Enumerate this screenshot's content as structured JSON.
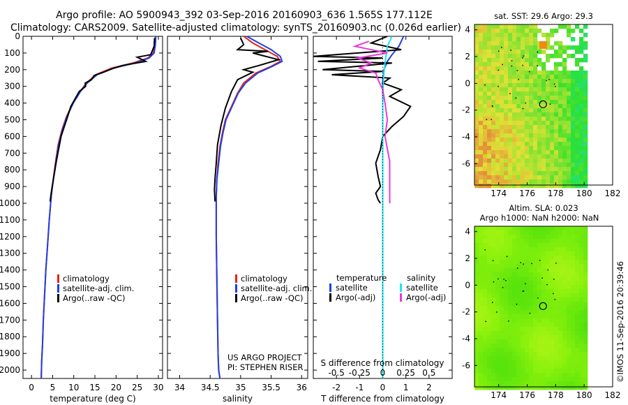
{
  "header": {
    "line1": "Argo profile: AO 5900943_392 03-Sep-2016 20160903_636 1.565S 177.112E",
    "line2": "Climatology: CARS2009. Satellite-adjusted climatology: synTS_20160903.nc (0.026d earlier)"
  },
  "side_credit": "©IMOS 11-Sep-2016 20:39:46",
  "colors": {
    "climatology": "#e8211d",
    "satellite_clim": "#1f3fe0",
    "argo": "#000000",
    "salinity_satellite": "#1ee4f0",
    "salinity_argo": "#e83ad6"
  },
  "chart_data": [
    {
      "type": "line",
      "panel": "temperature",
      "xlabel": "temperature (deg C)",
      "xlim": [
        -2,
        31
      ],
      "ylim": [
        2050,
        0
      ],
      "xticks": [
        "0",
        "5",
        "10",
        "15",
        "20",
        "25",
        "30"
      ],
      "xtick_values": [
        0,
        5,
        10,
        15,
        20,
        25,
        30
      ],
      "yticks": [
        "0",
        "100",
        "200",
        "300",
        "400",
        "500",
        "600",
        "700",
        "800",
        "900",
        "1000",
        "1100",
        "1200",
        "1300",
        "1400",
        "1500",
        "1600",
        "1700",
        "1800",
        "1900",
        "2000"
      ],
      "ytick_values": [
        0,
        100,
        200,
        300,
        400,
        500,
        600,
        700,
        800,
        900,
        1000,
        1100,
        1200,
        1300,
        1400,
        1500,
        1600,
        1700,
        1800,
        1900,
        2000
      ],
      "legend": [
        "climatology",
        "satellite-adj. clim.",
        "Argo(..raw -QC)"
      ],
      "series": [
        {
          "name": "climatology",
          "color": "#e8211d",
          "x": [
            29.3,
            29.2,
            28.8,
            27.5,
            24,
            19,
            15.2,
            13,
            11.5,
            9.8,
            8.3,
            7.2,
            6.3,
            5.7,
            5.2,
            4.7,
            4.2,
            3.8,
            3.4,
            3.1,
            2.8,
            2.6,
            2.4,
            2.3
          ],
          "y": [
            0,
            50,
            100,
            130,
            160,
            190,
            230,
            280,
            330,
            400,
            480,
            560,
            650,
            750,
            850,
            950,
            1100,
            1250,
            1400,
            1550,
            1700,
            1850,
            1950,
            2050
          ]
        },
        {
          "name": "satellite-adj. clim.",
          "color": "#1f3fe0",
          "x": [
            29.4,
            29.3,
            29,
            27.8,
            24.5,
            19.5,
            15.5,
            13.2,
            11.6,
            9.9,
            8.4,
            7.3,
            6.4,
            5.8,
            5.2,
            4.7,
            4.2,
            3.8,
            3.4,
            3.1,
            2.8,
            2.6,
            2.4,
            2.3
          ],
          "y": [
            0,
            50,
            100,
            130,
            160,
            190,
            230,
            280,
            330,
            400,
            480,
            560,
            650,
            750,
            850,
            950,
            1100,
            1250,
            1400,
            1550,
            1700,
            1850,
            1950,
            2050
          ]
        },
        {
          "name": "Argo(..raw -QC)",
          "color": "#000000",
          "x": [
            29.1,
            29.0,
            28.2,
            25,
            27,
            21.5,
            19,
            17,
            14.8,
            14.2,
            12.7,
            12.8,
            11.3,
            10.2,
            9.3,
            8.7,
            7.9,
            7.0,
            6.4,
            5.8,
            5.3,
            4.9,
            4.6,
            4.4
          ],
          "y": [
            10,
            60,
            110,
            125,
            150,
            175,
            195,
            215,
            235,
            260,
            280,
            300,
            330,
            380,
            420,
            470,
            530,
            600,
            680,
            760,
            840,
            900,
            950,
            990
          ]
        }
      ]
    },
    {
      "type": "line",
      "panel": "salinity",
      "xlabel": "salinity",
      "xlim": [
        33.8,
        36.1
      ],
      "ylim": [
        2050,
        0
      ],
      "xticks": [
        "34",
        "34.5",
        "35",
        "35.5",
        "36"
      ],
      "xtick_values": [
        34,
        34.5,
        35,
        35.5,
        36
      ],
      "legend": [
        "climatology",
        "satellite-adj. clim.",
        "Argo(..raw -QC)"
      ],
      "annotations": [
        "US ARGO PROJECT",
        "PI: STEPHEN RISER"
      ],
      "series": [
        {
          "name": "climatology",
          "color": "#e8211d",
          "x": [
            35.05,
            35.2,
            35.4,
            35.6,
            35.65,
            35.5,
            35.25,
            35.05,
            34.95,
            34.85,
            34.75,
            34.7,
            34.66,
            34.63,
            34.61,
            34.6,
            34.6,
            34.61,
            34.62,
            34.63,
            34.64,
            34.66
          ],
          "y": [
            0,
            40,
            80,
            120,
            150,
            180,
            220,
            280,
            340,
            420,
            500,
            580,
            660,
            760,
            860,
            960,
            1200,
            1450,
            1700,
            1900,
            2000,
            2050
          ]
        },
        {
          "name": "satellite-adj. clim.",
          "color": "#1f3fe0",
          "x": [
            35.1,
            35.3,
            35.5,
            35.65,
            35.68,
            35.52,
            35.28,
            35.08,
            34.96,
            34.86,
            34.76,
            34.71,
            34.67,
            34.64,
            34.61,
            34.6,
            34.6,
            34.61,
            34.62,
            34.63,
            34.64,
            34.66
          ],
          "y": [
            0,
            40,
            80,
            120,
            150,
            180,
            220,
            280,
            340,
            420,
            500,
            580,
            660,
            760,
            860,
            960,
            1200,
            1450,
            1700,
            1900,
            2000,
            2050
          ]
        },
        {
          "name": "Argo(..raw -QC)",
          "color": "#000000",
          "x": [
            35.0,
            35.05,
            34.95,
            35.45,
            35.2,
            35.62,
            35.3,
            35.05,
            35.2,
            34.95,
            34.85,
            34.75,
            34.68,
            34.62,
            34.6,
            34.58,
            34.57,
            34.58
          ],
          "y": [
            10,
            50,
            80,
            90,
            100,
            140,
            175,
            200,
            215,
            260,
            330,
            430,
            530,
            650,
            760,
            850,
            920,
            990
          ]
        }
      ]
    },
    {
      "type": "line",
      "panel": "difference",
      "xlabel": "T difference from climatology",
      "xlabel_top": "S difference from climatology",
      "xlim": [
        -3,
        3
      ],
      "ylim": [
        2050,
        0
      ],
      "xticks": [
        "-2",
        "-1",
        "0",
        "1",
        "2"
      ],
      "xtick_values": [
        -2,
        -1,
        0,
        1,
        2
      ],
      "top_ticks": [
        "-0.5",
        "-0.25",
        "0",
        "0.25",
        "0.5"
      ],
      "top_tick_values": [
        -0.5,
        -0.25,
        0,
        0.25,
        0.5
      ],
      "legend_headers": [
        "temperature",
        "salinity"
      ],
      "legend": [
        "satellite",
        "Argo(-adj)",
        "satellite",
        "Argo(-adj)"
      ],
      "series": [
        {
          "name": "satellite",
          "group": "temperature",
          "color": "#1f3fe0",
          "x": [
            0.9,
            0.7,
            0.4,
            0.2,
            0.05,
            0.0,
            0.0
          ],
          "y": [
            0,
            60,
            110,
            150,
            200,
            260,
            2050
          ]
        },
        {
          "name": "Argo(-adj)",
          "group": "temperature",
          "color": "#000000",
          "x": [
            0.2,
            -0.5,
            0.8,
            -3.0,
            0.0,
            -2.8,
            0.4,
            -2.6,
            0.0,
            -2.2,
            0.3,
            0.0,
            0.8,
            0.3,
            1.2,
            0.9,
            0.4,
            0.0,
            -0.1,
            -0.3,
            -0.2,
            -0.1,
            -0.3,
            -0.2,
            -0.1
          ],
          "y": [
            0,
            40,
            80,
            120,
            130,
            150,
            160,
            200,
            210,
            230,
            250,
            280,
            320,
            360,
            420,
            480,
            540,
            600,
            680,
            760,
            840,
            900,
            940,
            980,
            1000
          ]
        },
        {
          "name": "satellite",
          "group": "salinity",
          "color": "#1ee4f0",
          "x": [
            0.4,
            0.2,
            0.15,
            0.1,
            0.05,
            0.02,
            0.0,
            0.0
          ],
          "y": [
            0,
            60,
            110,
            160,
            220,
            300,
            400,
            2050
          ]
        },
        {
          "name": "Argo(-adj)",
          "group": "salinity",
          "color": "#e83ad6",
          "x": [
            -0.6,
            -1.2,
            0.2,
            -1.1,
            -0.5,
            -1.0,
            -0.3,
            -0.2,
            0.0,
            0.1,
            0.2,
            0.1,
            0.3,
            0.3,
            0.3
          ],
          "y": [
            30,
            60,
            100,
            130,
            160,
            190,
            220,
            260,
            320,
            400,
            500,
            600,
            750,
            900,
            1000
          ]
        }
      ]
    },
    {
      "type": "heatmap",
      "panel": "sst_map",
      "title": "sat. SST: 29.6  Argo: 29.3",
      "xlim": [
        172.3,
        182
      ],
      "ylim": [
        -7.6,
        4.4
      ],
      "xticks": [
        "174",
        "176",
        "178",
        "180",
        "182"
      ],
      "xtick_values": [
        174,
        176,
        178,
        180,
        182
      ],
      "yticks": [
        "4",
        "2",
        "0",
        "-2",
        "-4",
        "-6"
      ],
      "ytick_values": [
        4,
        2,
        0,
        -2,
        -4,
        -6
      ],
      "data_extent_x": [
        172.3,
        180
      ],
      "argo_position": [
        177.112,
        -1.565
      ]
    },
    {
      "type": "heatmap",
      "panel": "sla_map",
      "title": "Altim. SLA: 0.023",
      "subtitle": "Argo h1000: NaN h2000: NaN",
      "xlim": [
        172.3,
        182
      ],
      "ylim": [
        -7.6,
        4.4
      ],
      "xticks": [
        "174",
        "176",
        "178",
        "180",
        "182"
      ],
      "xtick_values": [
        174,
        176,
        178,
        180,
        182
      ],
      "yticks": [
        "4",
        "2",
        "0",
        "-2",
        "-4",
        "-6"
      ],
      "ytick_values": [
        4,
        2,
        0,
        -2,
        -4,
        -6
      ],
      "data_extent_x": [
        172.3,
        180
      ],
      "argo_position": [
        177.112,
        -1.565
      ]
    }
  ]
}
